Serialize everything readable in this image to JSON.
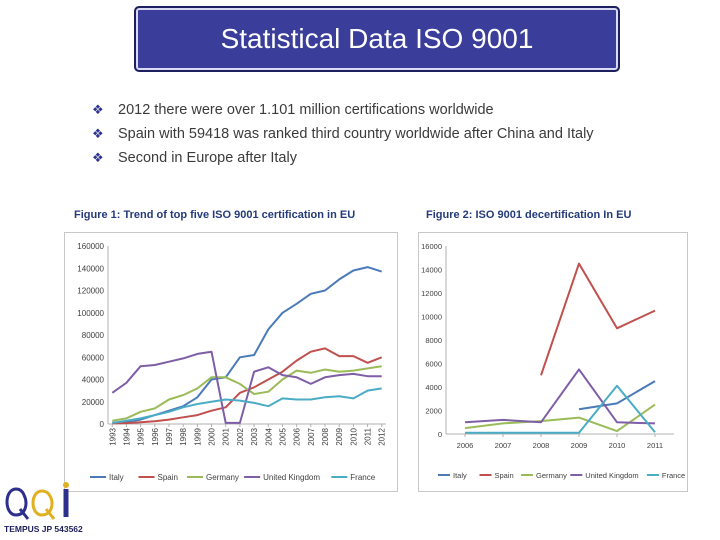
{
  "slide": {
    "title": "Statistical Data ISO 9001",
    "bullets": [
      "2012 there were over 1.101 million certifications worldwide",
      "Spain with 59418 was ranked third country worldwide after China and Italy",
      "Second in Europe after Italy"
    ],
    "figure1_title": "Figure 1: Trend of top five ISO 9001 certification in EU",
    "figure2_title": "Figure 2: ISO 9001 decertification In EU",
    "logo_text": "TEMPUS JP 543562"
  },
  "colors": {
    "title_bg": "#3a3d99",
    "Italy": "#4a7ab8",
    "Spain": "#c0504d",
    "Germany": "#9bbb59",
    "United Kingdom": "#7e5ea6",
    "France": "#4bacc6"
  },
  "chart_data": [
    {
      "type": "line",
      "title": "Figure 1: Trend of top five ISO 9001 certification in EU",
      "xlabel": "",
      "ylabel": "",
      "categories": [
        "1993",
        "1994",
        "1995",
        "1996",
        "1997",
        "1998",
        "1999",
        "2000",
        "2001",
        "2002",
        "2003",
        "2004",
        "2005",
        "2006",
        "2007",
        "2008",
        "2009",
        "2010",
        "2011",
        "2012"
      ],
      "ylim": [
        0,
        160000
      ],
      "yticks": [
        0,
        20000,
        40000,
        60000,
        80000,
        100000,
        120000,
        140000,
        160000
      ],
      "ytick_labels": [
        "0",
        "20000",
        "40000",
        "60000",
        "80000",
        "100000",
        "120000",
        "140000",
        "160000"
      ],
      "grid": false,
      "legend": "bottom",
      "series": [
        {
          "name": "Italy",
          "values": [
            1000,
            2000,
            4000,
            8000,
            12000,
            16000,
            24000,
            40000,
            42000,
            60000,
            62000,
            85000,
            100000,
            108000,
            117000,
            120000,
            130000,
            138000,
            141000,
            137000
          ]
        },
        {
          "name": "Spain",
          "values": [
            500,
            800,
            1500,
            2500,
            4000,
            6000,
            8000,
            12000,
            15000,
            28000,
            33000,
            40000,
            47000,
            57000,
            65000,
            68000,
            61000,
            61000,
            55000,
            60000
          ]
        },
        {
          "name": "Germany",
          "values": [
            3000,
            5000,
            11000,
            14000,
            22000,
            26000,
            32000,
            42000,
            42000,
            36000,
            27000,
            29000,
            40000,
            48000,
            46000,
            49000,
            47000,
            48000,
            50000,
            52000
          ]
        },
        {
          "name": "United Kingdom",
          "values": [
            28000,
            37000,
            52000,
            53000,
            56000,
            59000,
            63000,
            65000,
            1000,
            1000,
            47000,
            51000,
            44000,
            42000,
            36000,
            42000,
            44000,
            45000,
            43000,
            43000
          ]
        },
        {
          "name": "France",
          "values": [
            1000,
            3000,
            5000,
            8000,
            11000,
            15000,
            18000,
            20000,
            22000,
            21000,
            19000,
            16000,
            23000,
            22000,
            22000,
            24000,
            25000,
            23000,
            30000,
            32000
          ]
        }
      ]
    },
    {
      "type": "line",
      "title": "Figure 2: ISO 9001 decertification In EU",
      "xlabel": "",
      "ylabel": "",
      "categories": [
        "2006",
        "2007",
        "2008",
        "2009",
        "2010",
        "2011"
      ],
      "ylim": [
        0,
        16000
      ],
      "yticks": [
        0,
        2000,
        4000,
        6000,
        8000,
        10000,
        12000,
        14000,
        16000
      ],
      "ytick_labels": [
        "0",
        "2000",
        "4000",
        "6000",
        "8000",
        "10000",
        "12000",
        "14000",
        "16000"
      ],
      "grid": false,
      "legend": "bottom",
      "series": [
        {
          "name": "Italy",
          "values": [
            null,
            null,
            null,
            2100,
            2600,
            4500
          ]
        },
        {
          "name": "Spain",
          "values": [
            null,
            null,
            5000,
            14500,
            9000,
            10500
          ]
        },
        {
          "name": "Germany",
          "values": [
            500,
            900,
            1100,
            1400,
            250,
            2500
          ]
        },
        {
          "name": "United Kingdom",
          "values": [
            1000,
            1200,
            1000,
            5500,
            1000,
            900
          ]
        },
        {
          "name": "France",
          "values": [
            100,
            100,
            100,
            100,
            4100,
            150
          ]
        }
      ]
    }
  ]
}
